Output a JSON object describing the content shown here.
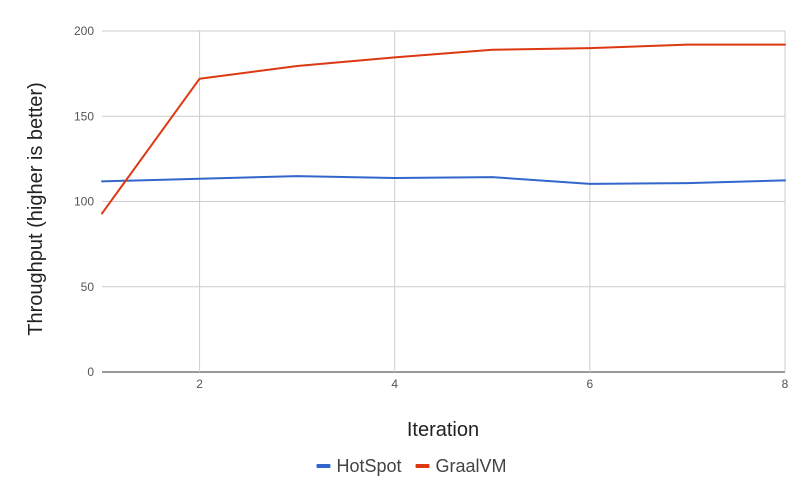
{
  "chart_data": {
    "type": "line",
    "xlabel": "Iteration",
    "ylabel": "Throughput (higher is better)",
    "x": [
      1,
      2,
      3,
      4,
      5,
      6,
      7,
      8
    ],
    "xlim": [
      1,
      8
    ],
    "ylim": [
      0,
      200
    ],
    "x_ticks": [
      2,
      4,
      6,
      8
    ],
    "y_ticks": [
      0,
      50,
      100,
      150,
      200
    ],
    "grid": true,
    "legend_position": "bottom",
    "series": [
      {
        "name": "HotSpot",
        "color": "#3366cc",
        "values": [
          111.8,
          113.4,
          114.9,
          113.8,
          114.3,
          110.3,
          110.8,
          112.4
        ]
      },
      {
        "name": "GraalVM",
        "color": "#dc3912",
        "values": [
          93,
          172,
          179.5,
          184.5,
          189,
          190,
          192,
          192
        ]
      }
    ]
  }
}
